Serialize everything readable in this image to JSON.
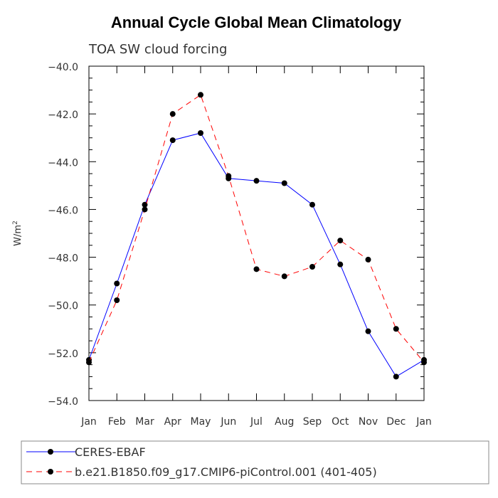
{
  "chart_data": {
    "type": "line",
    "title": "Annual Cycle Global Mean Climatology",
    "subtitle": "TOA SW cloud forcing",
    "xlabel": "",
    "ylabel": "W/m",
    "ylabel_superscript": "2",
    "categories": [
      "Jan",
      "Feb",
      "Mar",
      "Apr",
      "May",
      "Jun",
      "Jul",
      "Aug",
      "Sep",
      "Oct",
      "Nov",
      "Dec",
      "Jan"
    ],
    "yticks": [
      "-40.0",
      "-42.0",
      "-44.0",
      "-46.0",
      "-48.0",
      "-50.0",
      "-52.0",
      "-54.0"
    ],
    "ylim": [
      -54,
      -40
    ],
    "grid": false,
    "legend_position": "bottom",
    "series": [
      {
        "name": "CERES-EBAF",
        "color": "#0000ff",
        "dash": "solid",
        "marker": "dot",
        "values": [
          -52.3,
          -49.1,
          -45.8,
          -43.1,
          -42.8,
          -44.7,
          -44.8,
          -44.9,
          -45.8,
          -48.3,
          -51.1,
          -53.0,
          -52.3
        ]
      },
      {
        "name": "b.e21.B1850.f09_g17.CMIP6-piControl.001 (401-405)",
        "color": "#ff0000",
        "dash": "dashed",
        "marker": "dot",
        "values": [
          -52.4,
          -49.8,
          -46.0,
          -42.0,
          -41.2,
          -44.6,
          -48.5,
          -48.8,
          -48.4,
          -47.3,
          -48.1,
          -51.0,
          -52.4
        ]
      }
    ]
  }
}
